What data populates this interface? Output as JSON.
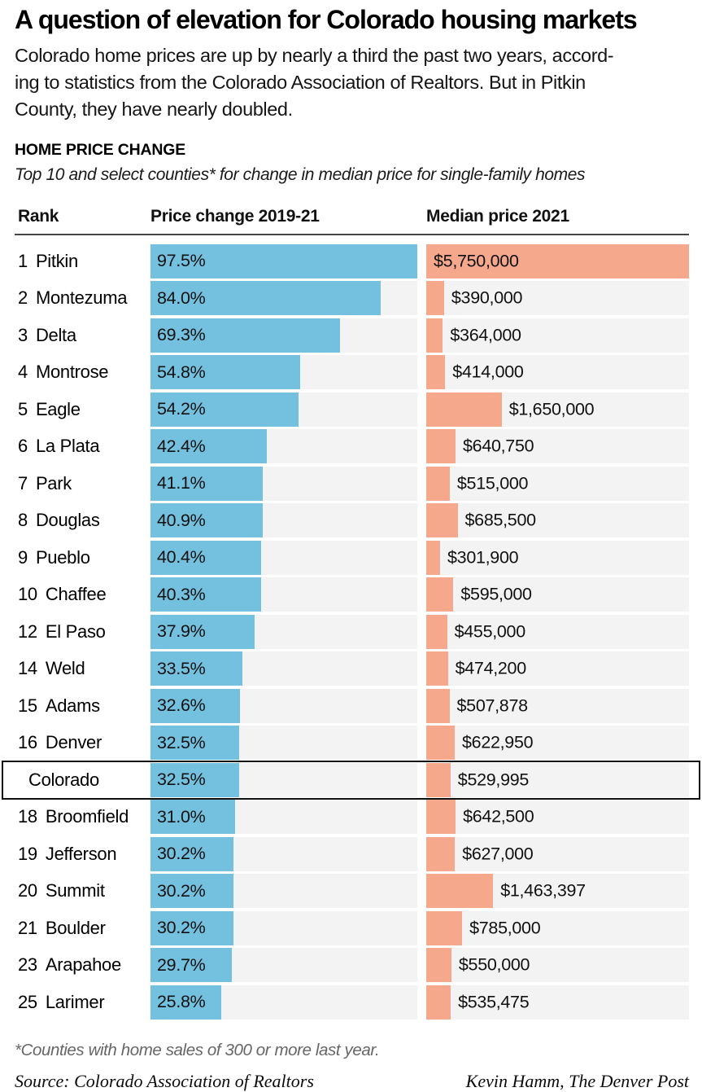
{
  "header": {
    "title": "A question of elevation for Colorado housing markets",
    "intro_lines": [
      "Colorado home prices are up by nearly a third the past two years, accord-",
      "ing to statistics from the Colorado Association of Realtors. But in Pitkin",
      "County, they have nearly doubled."
    ],
    "kicker": "HOME PRICE CHANGE",
    "subtitle": "Top 10 and select counties* for change in median price for single-family homes"
  },
  "columns": {
    "rank": "Rank",
    "price_change": "Price change 2019-21",
    "median_price": "Median price 2021"
  },
  "chart_data": {
    "type": "bar",
    "title": "HOME PRICE CHANGE",
    "subtitle": "Top 10 and select counties* for change in median price for single-family homes",
    "legend_position": "none",
    "grid": false,
    "pct_axis": {
      "label": "Price change 2019-21",
      "max": 97.5,
      "unit": "%"
    },
    "price_axis": {
      "label": "Median price 2021",
      "max": 5750000,
      "unit": "USD"
    },
    "colors": {
      "pct_bar": "#74c1df",
      "price_bar": "#f6a88d",
      "track": "#f3f3f3"
    },
    "rows": [
      {
        "rank": "1",
        "county": "Pitkin",
        "pct": 97.5,
        "pct_label": "97.5%",
        "price": 5750000,
        "price_label": "$5,750,000",
        "highlight": false
      },
      {
        "rank": "2",
        "county": "Montezuma",
        "pct": 84.0,
        "pct_label": "84.0%",
        "price": 390000,
        "price_label": "$390,000",
        "highlight": false
      },
      {
        "rank": "3",
        "county": "Delta",
        "pct": 69.3,
        "pct_label": "69.3%",
        "price": 364000,
        "price_label": "$364,000",
        "highlight": false
      },
      {
        "rank": "4",
        "county": "Montrose",
        "pct": 54.8,
        "pct_label": "54.8%",
        "price": 414000,
        "price_label": "$414,000",
        "highlight": false
      },
      {
        "rank": "5",
        "county": "Eagle",
        "pct": 54.2,
        "pct_label": "54.2%",
        "price": 1650000,
        "price_label": "$1,650,000",
        "highlight": false
      },
      {
        "rank": "6",
        "county": "La Plata",
        "pct": 42.4,
        "pct_label": "42.4%",
        "price": 640750,
        "price_label": "$640,750",
        "highlight": false
      },
      {
        "rank": "7",
        "county": "Park",
        "pct": 41.1,
        "pct_label": "41.1%",
        "price": 515000,
        "price_label": "$515,000",
        "highlight": false
      },
      {
        "rank": "8",
        "county": "Douglas",
        "pct": 40.9,
        "pct_label": "40.9%",
        "price": 685500,
        "price_label": "$685,500",
        "highlight": false
      },
      {
        "rank": "9",
        "county": "Pueblo",
        "pct": 40.4,
        "pct_label": "40.4%",
        "price": 301900,
        "price_label": "$301,900",
        "highlight": false
      },
      {
        "rank": "10",
        "county": "Chaffee",
        "pct": 40.3,
        "pct_label": "40.3%",
        "price": 595000,
        "price_label": "$595,000",
        "highlight": false
      },
      {
        "rank": "12",
        "county": "El Paso",
        "pct": 37.9,
        "pct_label": "37.9%",
        "price": 455000,
        "price_label": "$455,000",
        "highlight": false
      },
      {
        "rank": "14",
        "county": "Weld",
        "pct": 33.5,
        "pct_label": "33.5%",
        "price": 474200,
        "price_label": "$474,200",
        "highlight": false
      },
      {
        "rank": "15",
        "county": "Adams",
        "pct": 32.6,
        "pct_label": "32.6%",
        "price": 507878,
        "price_label": "$507,878",
        "highlight": false
      },
      {
        "rank": "16",
        "county": "Denver",
        "pct": 32.5,
        "pct_label": "32.5%",
        "price": 622950,
        "price_label": "$622,950",
        "highlight": false
      },
      {
        "rank": "",
        "county": "Colorado",
        "pct": 32.5,
        "pct_label": "32.5%",
        "price": 529995,
        "price_label": "$529,995",
        "highlight": true
      },
      {
        "rank": "18",
        "county": "Broomfield",
        "pct": 31.0,
        "pct_label": "31.0%",
        "price": 642500,
        "price_label": "$642,500",
        "highlight": false
      },
      {
        "rank": "19",
        "county": "Jefferson",
        "pct": 30.2,
        "pct_label": "30.2%",
        "price": 627000,
        "price_label": "$627,000",
        "highlight": false
      },
      {
        "rank": "20",
        "county": "Summit",
        "pct": 30.2,
        "pct_label": "30.2%",
        "price": 1463397,
        "price_label": "$1,463,397",
        "highlight": false
      },
      {
        "rank": "21",
        "county": "Boulder",
        "pct": 30.2,
        "pct_label": "30.2%",
        "price": 785000,
        "price_label": "$785,000",
        "highlight": false
      },
      {
        "rank": "23",
        "county": "Arapahoe",
        "pct": 29.7,
        "pct_label": "29.7%",
        "price": 550000,
        "price_label": "$550,000",
        "highlight": false
      },
      {
        "rank": "25",
        "county": "Larimer",
        "pct": 25.8,
        "pct_label": "25.8%",
        "price": 535475,
        "price_label": "$535,475",
        "highlight": false
      }
    ]
  },
  "footer": {
    "footnote": "*Counties with home sales of 300 or more last year.",
    "source": "Source: Colorado Association of Realtors",
    "credit": "Kevin Hamm, The Denver Post"
  }
}
